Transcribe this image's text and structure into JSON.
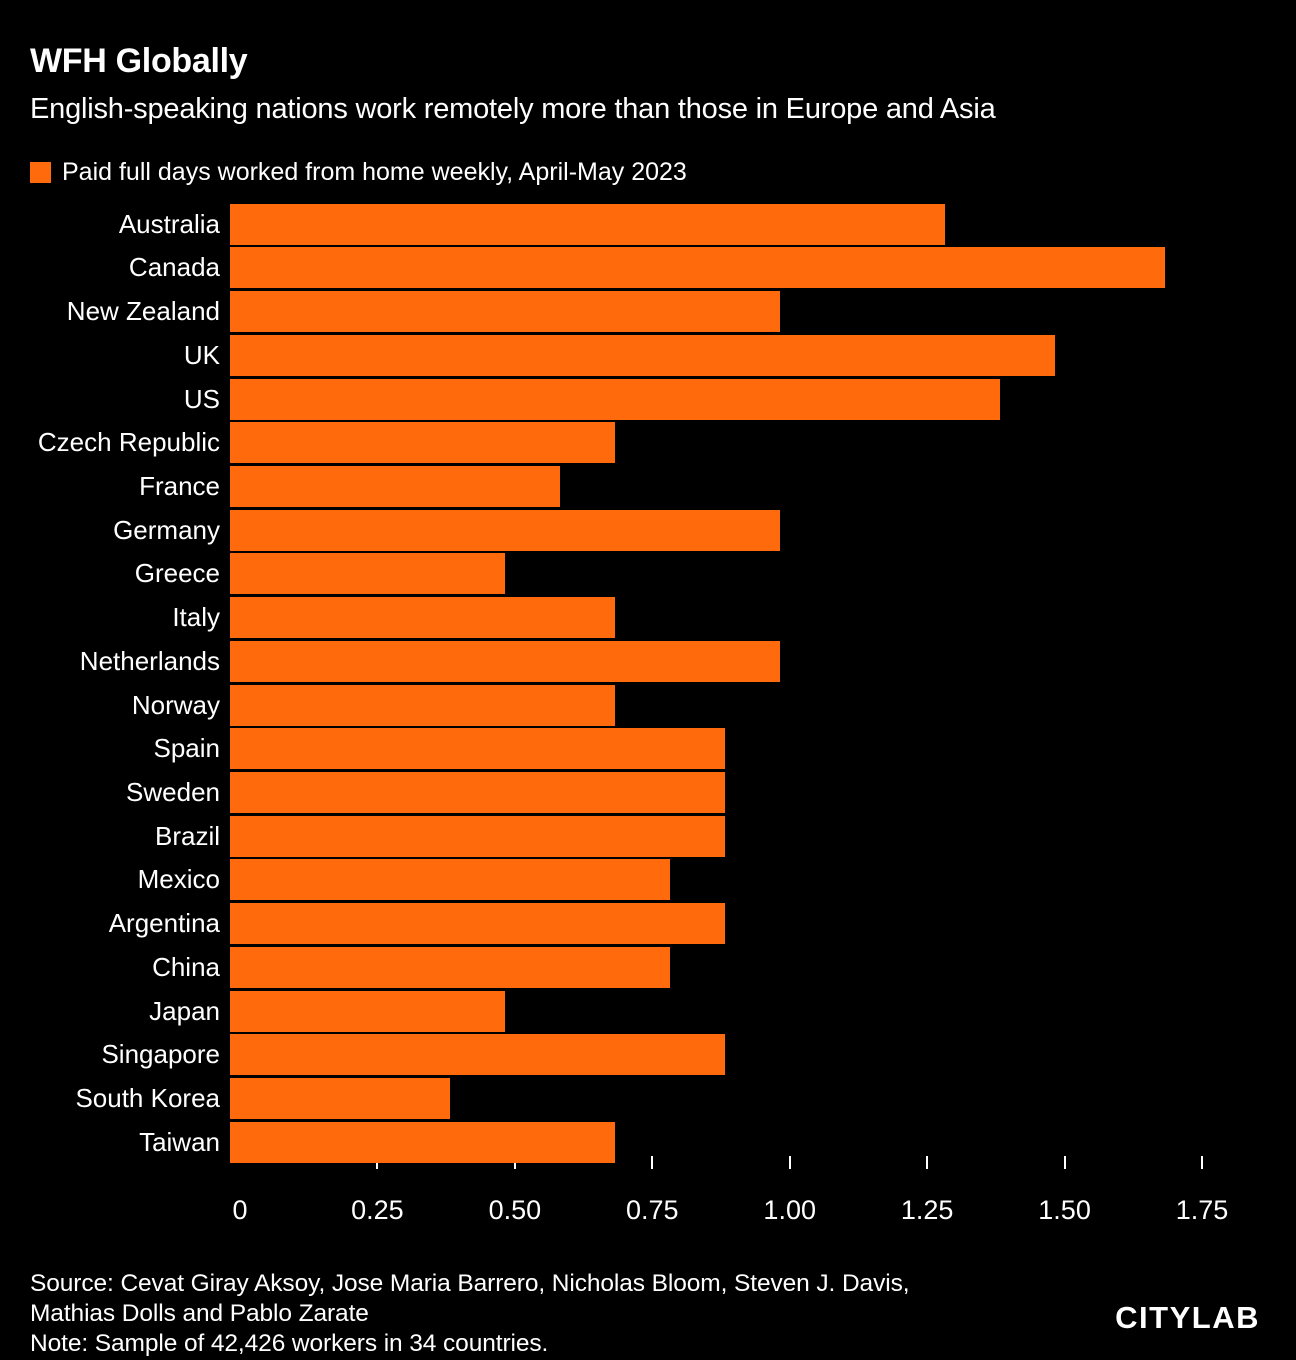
{
  "header": {
    "title": "WFH Globally",
    "subtitle": "English-speaking nations work remotely more than those in Europe and Asia"
  },
  "legend": {
    "label": "Paid full days worked from home weekly, April-May 2023",
    "swatch_color": "#FF6A0D"
  },
  "chart_data": {
    "type": "bar",
    "orientation": "horizontal",
    "title": "WFH Globally",
    "subtitle": "English-speaking nations work remotely more than those in Europe and Asia",
    "series_label": "Paid full days worked from home weekly, April-May 2023",
    "categories": [
      "Australia",
      "Canada",
      "New Zealand",
      "UK",
      "US",
      "Czech Republic",
      "France",
      "Germany",
      "Greece",
      "Italy",
      "Netherlands",
      "Norway",
      "Spain",
      "Sweden",
      "Brazil",
      "Mexico",
      "Argentina",
      "China",
      "Japan",
      "Singapore",
      "South Korea",
      "Taiwan"
    ],
    "values": [
      1.3,
      1.7,
      1.0,
      1.5,
      1.4,
      0.7,
      0.6,
      1.0,
      0.5,
      0.7,
      1.0,
      0.7,
      0.9,
      0.9,
      0.9,
      0.8,
      0.9,
      0.8,
      0.5,
      0.9,
      0.4,
      0.7
    ],
    "xlim": [
      0,
      1.75
    ],
    "x_ticks": [
      0,
      0.25,
      0.5,
      0.75,
      1.0,
      1.25,
      1.5,
      1.75
    ],
    "x_tick_labels": [
      "0",
      "0.25",
      "0.50",
      "0.75",
      "1.00",
      "1.25",
      "1.50",
      "1.75"
    ],
    "xlabel": "",
    "ylabel": "",
    "grid": false,
    "legend_position": "top",
    "bar_color": "#FF6A0D",
    "background_color": "#000000",
    "text_color": "#FFFFFF"
  },
  "footer": {
    "source_line1": "Source: Cevat Giray Aksoy, Jose Maria Barrero, Nicholas Bloom, Steven J. Davis,",
    "source_line2": "Mathias Dolls and Pablo Zarate",
    "note": "Note: Sample of 42,426 workers in 34 countries.",
    "brand": "CITYLAB"
  }
}
